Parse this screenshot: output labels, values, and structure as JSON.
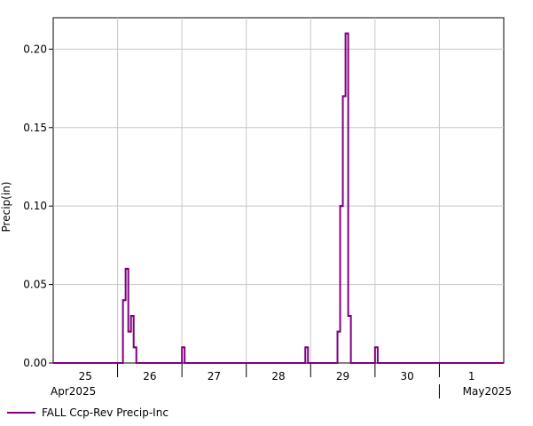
{
  "chart_data": {
    "type": "line",
    "step": true,
    "xlabel": "",
    "ylabel": "Precip(in)",
    "ylim": [
      0,
      0.22
    ],
    "xlim": [
      "2025-04-25T00:00",
      "2025-05-02T00:00"
    ],
    "yticks": [
      "0.00",
      "0.05",
      "0.10",
      "0.15",
      "0.20"
    ],
    "xticks": [
      "25",
      "26",
      "27",
      "28",
      "29",
      "30",
      "1"
    ],
    "x_month_labels": [
      "Apr2025",
      "May2025"
    ],
    "grid": true,
    "legend_position": "bottom-left",
    "series": [
      {
        "name": "FALL Ccp-Rev Precip-Inc",
        "color": "#800080",
        "x": [
          "2025-04-26T03:00",
          "2025-04-26T04:00",
          "2025-04-26T05:00",
          "2025-04-26T06:00",
          "2025-04-26T07:00",
          "2025-04-26T08:00",
          "2025-04-27T01:00",
          "2025-04-28T23:00",
          "2025-04-29T00:00",
          "2025-04-29T11:00",
          "2025-04-29T12:00",
          "2025-04-29T13:00",
          "2025-04-29T14:00",
          "2025-04-29T15:00",
          "2025-04-30T01:00"
        ],
        "values": [
          0.04,
          0.06,
          0.02,
          0.03,
          0.01,
          0.0,
          0.01,
          0.01,
          0.0,
          0.02,
          0.1,
          0.17,
          0.21,
          0.03,
          0.01
        ]
      }
    ]
  }
}
